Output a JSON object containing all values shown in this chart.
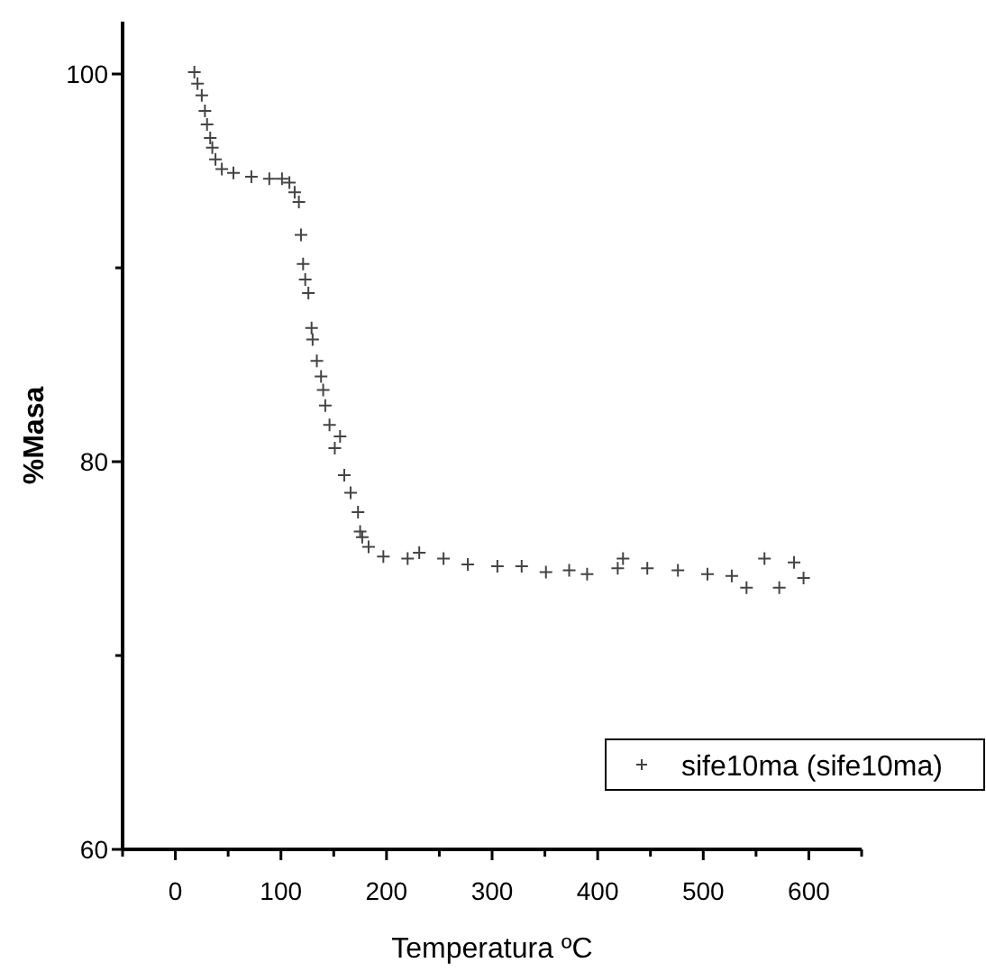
{
  "chart_data": {
    "type": "scatter",
    "xlabel": "Temperatura ºC",
    "ylabel": "%Masa",
    "marker": "cross",
    "legend": "bottom right",
    "grid": false,
    "xlim": [
      -50,
      650
    ],
    "xticks": [
      {
        "value": -50,
        "label": null
      },
      0,
      {
        "value": 50,
        "label": null
      },
      100,
      {
        "value": 150,
        "label": null
      },
      200,
      {
        "value": 250,
        "label": null
      },
      300,
      {
        "value": 350,
        "label": null
      },
      400,
      {
        "value": 450,
        "label": null
      },
      500,
      {
        "value": 550,
        "label": null
      },
      600,
      {
        "value": 650,
        "label": null
      }
    ],
    "ylim": [
      60,
      102.7
    ],
    "yticks": [
      60,
      {
        "value": 70,
        "label": null
      },
      80,
      {
        "value": 90,
        "label": null
      },
      100
    ],
    "series": [
      {
        "name": "sife10ma (sife10ma)",
        "color": "#444444",
        "x": [
          18,
          21,
          25,
          28,
          30,
          33,
          35,
          38,
          44,
          55,
          72,
          89,
          101,
          108,
          113,
          117,
          119,
          121,
          123,
          126,
          129,
          130,
          134,
          138,
          140,
          142,
          146,
          151,
          156,
          160,
          166,
          173,
          175,
          177,
          183,
          197,
          220,
          231,
          254,
          277,
          305,
          328,
          351,
          373,
          390,
          419,
          424,
          447,
          476,
          504,
          527,
          541,
          558,
          572,
          586,
          595
        ],
        "values": [
          100.1,
          99.5,
          98.9,
          98.1,
          97.4,
          96.7,
          96.2,
          95.6,
          95.1,
          94.9,
          94.7,
          94.6,
          94.6,
          94.4,
          93.9,
          93.4,
          91.7,
          90.2,
          89.4,
          88.7,
          86.9,
          86.3,
          85.2,
          84.4,
          83.7,
          82.9,
          81.9,
          80.7,
          81.3,
          79.3,
          78.4,
          77.4,
          76.4,
          76.1,
          75.6,
          75.1,
          75.0,
          75.3,
          75.0,
          74.7,
          74.6,
          74.6,
          74.3,
          74.4,
          74.2,
          74.5,
          75.0,
          74.5,
          74.4,
          74.2,
          74.1,
          73.5,
          75.0,
          73.5,
          74.8,
          74.0
        ]
      }
    ]
  }
}
